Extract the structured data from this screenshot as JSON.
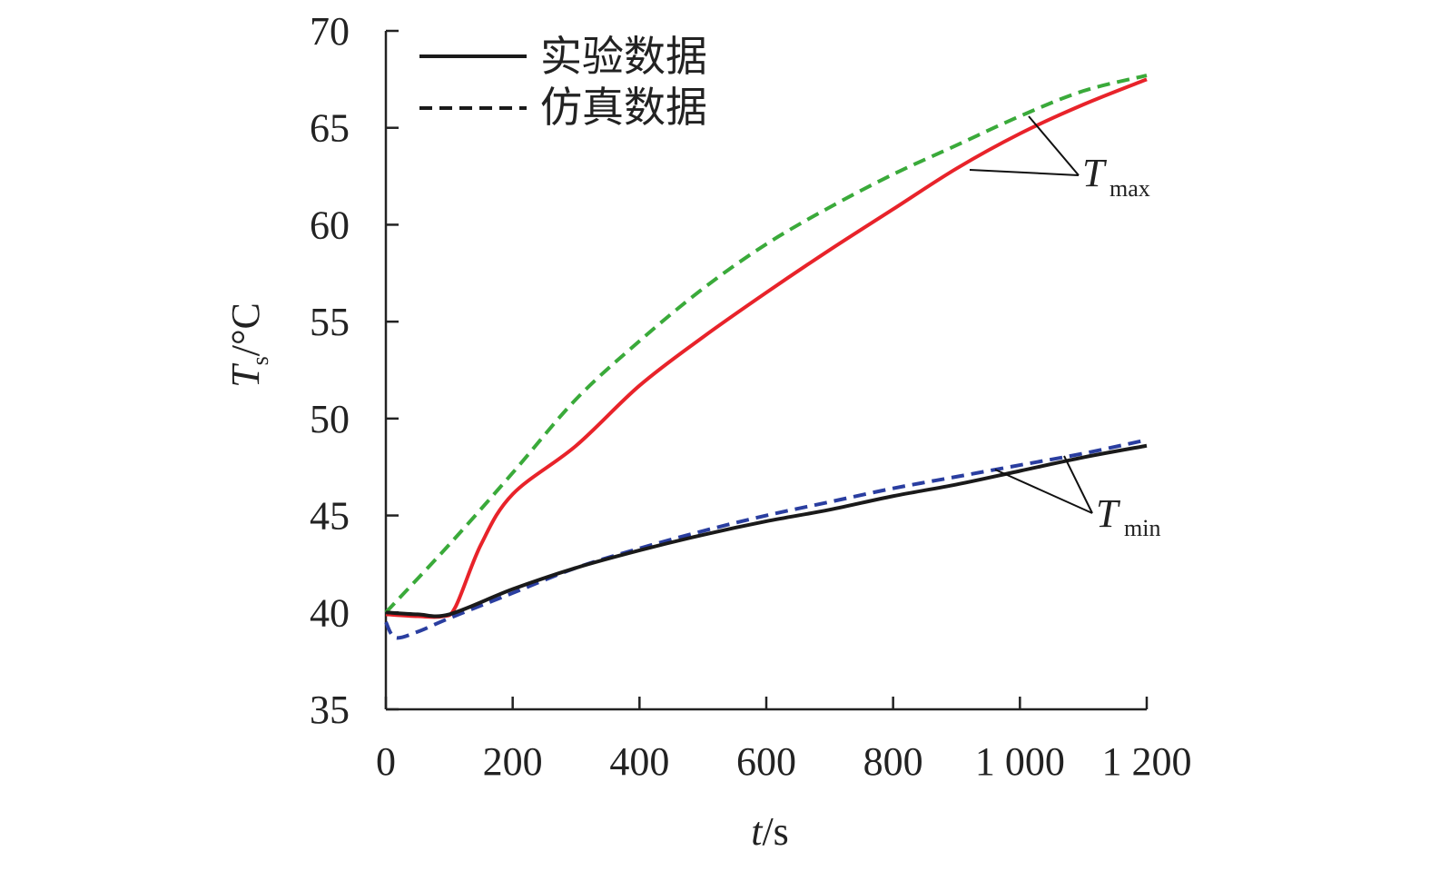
{
  "chart_data": {
    "type": "line",
    "title": "",
    "xlabel": "t/s",
    "xlabel_italic": "t",
    "xlabel_unit": "/s",
    "ylabel_main": "T",
    "ylabel_sub": "s",
    "ylabel_unit": "/°C",
    "xlim": [
      0,
      1200
    ],
    "ylim": [
      35,
      70
    ],
    "xticks": [
      0,
      200,
      400,
      600,
      800,
      1000,
      1200
    ],
    "xtick_labels": [
      "0",
      "200",
      "400",
      "600",
      "800",
      "1 000",
      "1 200"
    ],
    "yticks": [
      35,
      40,
      45,
      50,
      55,
      60,
      65,
      70
    ],
    "ytick_labels": [
      "35",
      "40",
      "45",
      "50",
      "55",
      "60",
      "65",
      "70"
    ],
    "grid": false,
    "legend": {
      "placement": "top-left",
      "entries": [
        {
          "label": "实验数据",
          "style": "solid"
        },
        {
          "label": "仿真数据",
          "style": "dashed"
        }
      ]
    },
    "annotations": [
      {
        "main": "T",
        "sub": "max"
      },
      {
        "main": "T",
        "sub": "min"
      }
    ],
    "series": [
      {
        "name": "Tmax 仿真数据",
        "color": "#3aaa3a",
        "style": "dashed",
        "x": [
          0,
          100,
          200,
          300,
          400,
          500,
          600,
          700,
          800,
          900,
          1000,
          1100,
          1200
        ],
        "y": [
          40.0,
          43.5,
          47.2,
          51.0,
          54.0,
          56.7,
          59.0,
          60.9,
          62.6,
          64.1,
          65.6,
          66.9,
          67.7
        ]
      },
      {
        "name": "Tmax 实验数据",
        "color": "#e8232a",
        "style": "solid",
        "x": [
          0,
          50,
          90,
          110,
          150,
          200,
          300,
          400,
          500,
          600,
          700,
          800,
          900,
          1000,
          1100,
          1200
        ],
        "y": [
          39.9,
          39.8,
          39.8,
          40.3,
          43.5,
          46.1,
          48.6,
          51.7,
          54.2,
          56.5,
          58.7,
          60.8,
          62.9,
          64.7,
          66.2,
          67.5
        ]
      },
      {
        "name": "Tmin 仿真数据",
        "color": "#2a3ea0",
        "style": "dashed",
        "x": [
          0,
          15,
          50,
          100,
          200,
          300,
          400,
          500,
          600,
          700,
          800,
          900,
          1000,
          1100,
          1200
        ],
        "y": [
          39.5,
          38.7,
          39.0,
          39.7,
          41.0,
          42.3,
          43.3,
          44.2,
          45.0,
          45.7,
          46.4,
          47.0,
          47.6,
          48.2,
          48.9
        ]
      },
      {
        "name": "Tmin 实验数据",
        "color": "#1a1a1a",
        "style": "solid",
        "x": [
          0,
          50,
          100,
          200,
          300,
          400,
          500,
          600,
          700,
          800,
          900,
          1000,
          1100,
          1200
        ],
        "y": [
          40.0,
          39.9,
          39.9,
          41.2,
          42.3,
          43.2,
          44.0,
          44.7,
          45.3,
          46.0,
          46.6,
          47.3,
          48.0,
          48.6
        ]
      }
    ]
  }
}
